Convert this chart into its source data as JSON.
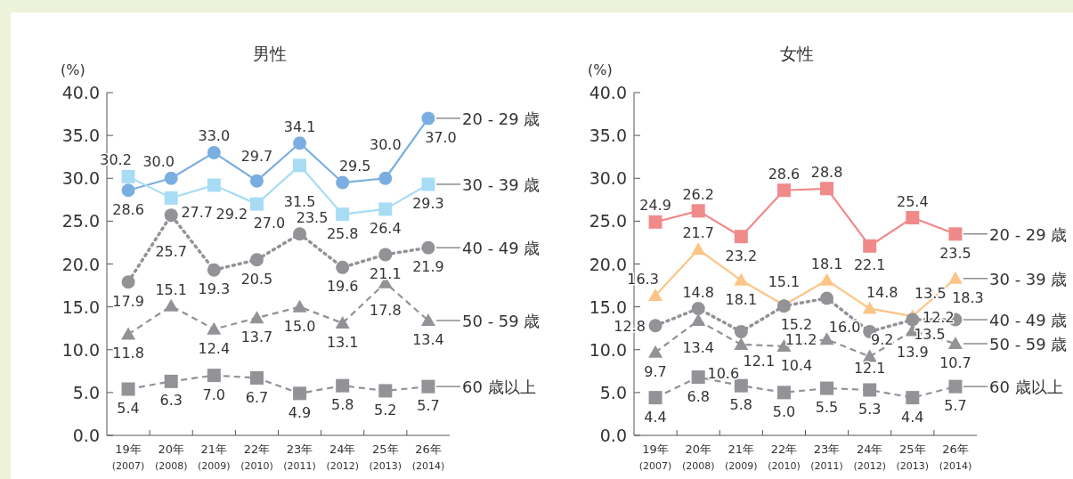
{
  "chart_data": [
    {
      "type": "line",
      "title": "男性",
      "ylabel": "(%)",
      "categories": [
        "19年 (2007)",
        "20年 (2008)",
        "21年 (2009)",
        "22年 (2010)",
        "23年 (2011)",
        "24年 (2012)",
        "25年 (2013)",
        "26年 (2014)"
      ],
      "ylim": [
        0,
        40
      ],
      "yticks": [
        {
          "value": 0,
          "label": "0.0"
        },
        {
          "value": 5,
          "label": "5.0"
        },
        {
          "value": 10,
          "label": "10.0"
        },
        {
          "value": 15,
          "label": "15.0"
        },
        {
          "value": 20,
          "label": "20.0"
        },
        {
          "value": 25,
          "label": "25.0"
        },
        {
          "value": 30,
          "label": "30.0"
        },
        {
          "value": 35,
          "label": "35.0"
        },
        {
          "value": 40,
          "label": "40.0"
        }
      ],
      "series": [
        {
          "name": "20 - 29 歳",
          "color": "#7aaee0",
          "marker": "circle",
          "line_style": "solid",
          "values": [
            28.6,
            30.0,
            33.0,
            29.7,
            34.1,
            29.5,
            30.0,
            37.0
          ],
          "value_labels": [
            "28.6",
            "30.0",
            "33.0",
            "29.7",
            "34.1",
            "29.5",
            "30.0",
            "37.0"
          ]
        },
        {
          "name": "30 - 39 歳",
          "color": "#a8dcf5",
          "marker": "square",
          "line_style": "solid",
          "values": [
            30.2,
            27.7,
            29.2,
            27.0,
            31.5,
            25.8,
            26.4,
            29.3
          ],
          "value_labels": [
            "30.2",
            "27.7",
            "29.2",
            "27.0",
            "31.5",
            "25.8",
            "26.4",
            "29.3"
          ]
        },
        {
          "name": "40 - 49 歳",
          "color": "#929297",
          "marker": "circle",
          "line_style": "dotted",
          "values": [
            17.9,
            25.7,
            19.3,
            20.5,
            23.5,
            19.6,
            21.1,
            21.9
          ],
          "value_labels": [
            "17.9",
            "25.7",
            "19.3",
            "20.5",
            "23.5",
            "19.6",
            "21.1",
            "21.9"
          ]
        },
        {
          "name": "50 - 59 歳",
          "color": "#929297",
          "marker": "triangle",
          "line_style": "dashed",
          "values": [
            11.8,
            15.1,
            12.4,
            13.7,
            15.0,
            13.1,
            17.8,
            13.4
          ],
          "value_labels": [
            "11.8",
            "15.1",
            "12.4",
            "13.7",
            "15.0",
            "13.1",
            "17.8",
            "13.4"
          ]
        },
        {
          "name": "60 歳以上",
          "color": "#929297",
          "marker": "square",
          "line_style": "dashed",
          "values": [
            5.4,
            6.3,
            7.0,
            6.7,
            4.9,
            5.8,
            5.2,
            5.7
          ],
          "value_labels": [
            "5.4",
            "6.3",
            "7.0",
            "6.7",
            "4.9",
            "5.8",
            "5.2",
            "5.7"
          ]
        }
      ]
    },
    {
      "type": "line",
      "title": "女性",
      "ylabel": "(%)",
      "categories": [
        "19年 (2007)",
        "20年 (2008)",
        "21年 (2009)",
        "22年 (2010)",
        "23年 (2011)",
        "24年 (2012)",
        "25年 (2013)",
        "26年 (2014)"
      ],
      "ylim": [
        0,
        40
      ],
      "yticks": [
        {
          "value": 0,
          "label": "0.0"
        },
        {
          "value": 5,
          "label": "5.0"
        },
        {
          "value": 10,
          "label": "10.0"
        },
        {
          "value": 15,
          "label": "15.0"
        },
        {
          "value": 20,
          "label": "20.0"
        },
        {
          "value": 25,
          "label": "25.0"
        },
        {
          "value": 30,
          "label": "30.0"
        },
        {
          "value": 35,
          "label": "35.0"
        },
        {
          "value": 40,
          "label": "40.0"
        }
      ],
      "series": [
        {
          "name": "20 - 29 歳",
          "color": "#f08a8a",
          "marker": "square",
          "line_style": "solid",
          "values": [
            24.9,
            26.2,
            23.2,
            28.6,
            28.8,
            22.1,
            25.4,
            23.5
          ],
          "value_labels": [
            "24.9",
            "26.2",
            "23.2",
            "28.6",
            "28.8",
            "22.1",
            "25.4",
            "23.5"
          ]
        },
        {
          "name": "30 - 39 歳",
          "color": "#fcc586",
          "marker": "triangle",
          "line_style": "solid",
          "values": [
            16.3,
            21.7,
            18.1,
            15.2,
            18.1,
            14.8,
            13.9,
            18.3
          ],
          "value_labels": [
            "16.3",
            "21.7",
            "18.1",
            "15.2",
            "18.1",
            "14.8",
            "13.9",
            "18.3"
          ]
        },
        {
          "name": "40 - 49 歳",
          "color": "#929297",
          "marker": "circle",
          "line_style": "dotted",
          "values": [
            12.8,
            14.8,
            12.1,
            15.1,
            16.0,
            12.1,
            13.5,
            13.5
          ],
          "value_labels": [
            "12.8",
            "14.8",
            "12.1",
            "15.1",
            "16.0",
            "12.1",
            "13.5",
            "13.5"
          ]
        },
        {
          "name": "50 - 59 歳",
          "color": "#929297",
          "marker": "triangle",
          "line_style": "dashed",
          "values": [
            9.7,
            13.4,
            10.6,
            10.4,
            11.2,
            9.2,
            12.2,
            10.7
          ],
          "value_labels": [
            "9.7",
            "13.4",
            "10.6",
            "10.4",
            "11.2",
            "9.2",
            "12.2",
            "10.7"
          ]
        },
        {
          "name": "60 歳以上",
          "color": "#929297",
          "marker": "square",
          "line_style": "dashed",
          "values": [
            4.4,
            6.8,
            5.8,
            5.0,
            5.5,
            5.3,
            4.4,
            5.7
          ],
          "value_labels": [
            "4.4",
            "6.8",
            "5.8",
            "5.0",
            "5.5",
            "5.3",
            "4.4",
            "5.7"
          ]
        }
      ]
    }
  ]
}
